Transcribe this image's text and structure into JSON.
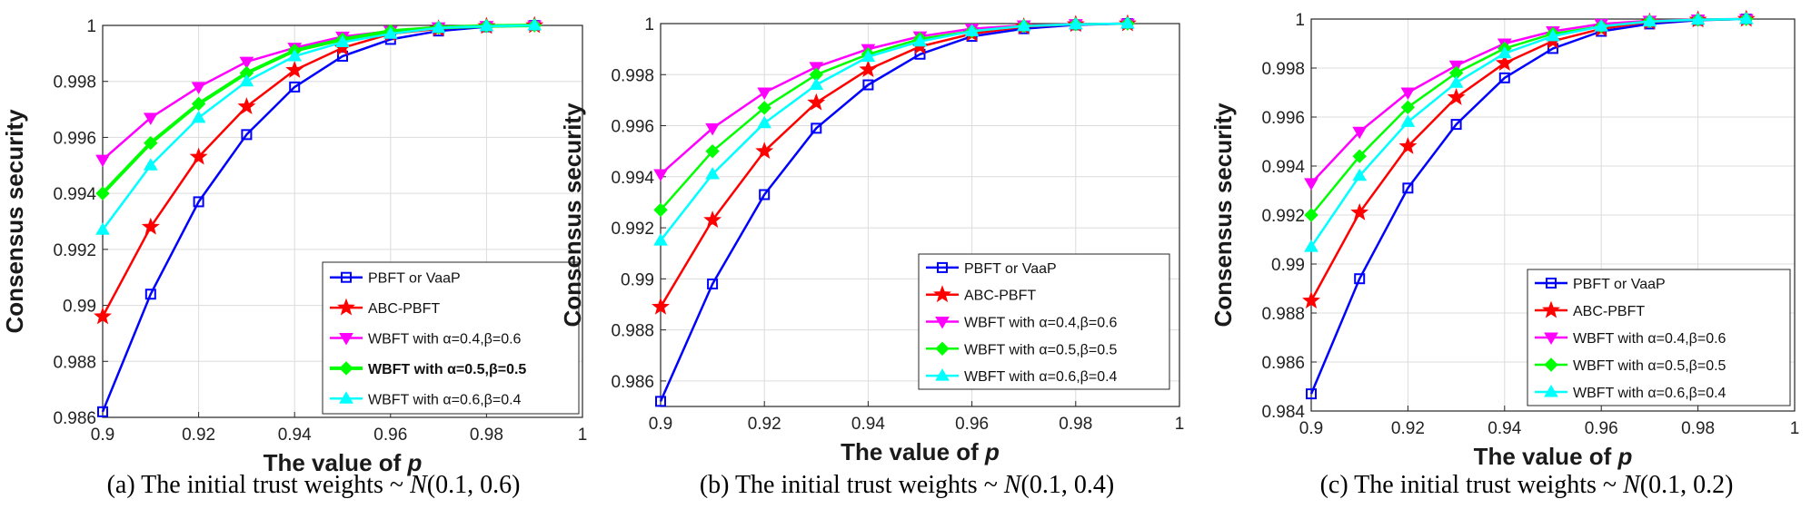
{
  "figure": {
    "captions": [
      {
        "prefix": "(a) The initial trust weights ~ ",
        "italic": "N",
        "suffix": "(0.1, 0.6)"
      },
      {
        "prefix": "(b) The initial trust weights ~ ",
        "italic": "N",
        "suffix": "(0.1, 0.4)"
      },
      {
        "prefix": "(c) The initial trust weights ~ ",
        "italic": "N",
        "suffix": "(0.1, 0.2)"
      }
    ]
  },
  "chart_data": [
    {
      "type": "line",
      "xlabel": "The value of",
      "xlabel_var": "p",
      "ylabel": "Consensus security",
      "xlim": [
        0.9,
        1
      ],
      "ylim": [
        0.986,
        1
      ],
      "xticks": [
        "0.9",
        "0.92",
        "0.94",
        "0.96",
        "0.98",
        "1"
      ],
      "yticks": [
        "0.986",
        "0.988",
        "0.99",
        "0.992",
        "0.994",
        "0.996",
        "0.998",
        "1"
      ],
      "grid": true,
      "legend_position": "bottom-right",
      "x": [
        0.9,
        0.91,
        0.92,
        0.93,
        0.94,
        0.95,
        0.96,
        0.97,
        0.98,
        0.99
      ],
      "series": [
        {
          "name": "PBFT or VaaP",
          "color": "#0000ff",
          "marker": "square",
          "values": [
            0.9862,
            0.9904,
            0.9937,
            0.9961,
            0.9978,
            0.9989,
            0.9995,
            0.9998,
            0.99995,
            1.0
          ]
        },
        {
          "name": "ABC-PBFT",
          "color": "#ff0000",
          "marker": "star",
          "values": [
            0.9896,
            0.9928,
            0.9953,
            0.9971,
            0.9984,
            0.9992,
            0.9997,
            0.99988,
            0.99997,
            1.0
          ]
        },
        {
          "name": "WBFT with α=0.4,β=0.6",
          "color": "#ff00ff",
          "marker": "triangle-down",
          "values": [
            0.9952,
            0.9967,
            0.9978,
            0.9987,
            0.9992,
            0.9996,
            0.9998,
            0.99993,
            0.99998,
            1.0
          ]
        },
        {
          "name": "WBFT with α=0.5,β=0.5",
          "color": "#00ff00",
          "marker": "diamond",
          "bold": true,
          "values": [
            0.994,
            0.9958,
            0.9972,
            0.9983,
            0.9991,
            0.9995,
            0.9998,
            0.99992,
            0.99998,
            1.0
          ]
        },
        {
          "name": "WBFT with α=0.6,β=0.4",
          "color": "#00ffff",
          "marker": "triangle-up",
          "values": [
            0.9927,
            0.995,
            0.9967,
            0.998,
            0.9989,
            0.9994,
            0.9997,
            0.99991,
            0.99997,
            1.0
          ]
        }
      ]
    },
    {
      "type": "line",
      "xlabel": "The value of",
      "xlabel_var": "p",
      "ylabel": "Consensus security",
      "xlim": [
        0.9,
        1
      ],
      "ylim": [
        0.985,
        1
      ],
      "xticks": [
        "0.9",
        "0.92",
        "0.94",
        "0.96",
        "0.98",
        "1"
      ],
      "yticks": [
        "0.986",
        "0.988",
        "0.99",
        "0.992",
        "0.994",
        "0.996",
        "0.998",
        "1"
      ],
      "grid": true,
      "legend_position": "bottom-right",
      "x": [
        0.9,
        0.91,
        0.92,
        0.93,
        0.94,
        0.95,
        0.96,
        0.97,
        0.98,
        0.99
      ],
      "series": [
        {
          "name": "PBFT or VaaP",
          "color": "#0000ff",
          "marker": "square",
          "values": [
            0.9852,
            0.9898,
            0.9933,
            0.9959,
            0.9976,
            0.9988,
            0.9995,
            0.9998,
            0.99995,
            1.0
          ]
        },
        {
          "name": "ABC-PBFT",
          "color": "#ff0000",
          "marker": "star",
          "values": [
            0.9889,
            0.9923,
            0.995,
            0.9969,
            0.9982,
            0.9991,
            0.9996,
            0.99988,
            0.99997,
            1.0
          ]
        },
        {
          "name": "WBFT with α=0.4,β=0.6",
          "color": "#ff00ff",
          "marker": "triangle-down",
          "values": [
            0.9941,
            0.9959,
            0.9973,
            0.9983,
            0.999,
            0.9995,
            0.9998,
            0.99993,
            0.99998,
            1.0
          ]
        },
        {
          "name": "WBFT with α=0.5,β=0.5",
          "color": "#00ff00",
          "marker": "diamond",
          "values": [
            0.9927,
            0.995,
            0.9967,
            0.998,
            0.9988,
            0.9994,
            0.9997,
            0.99991,
            0.99997,
            1.0
          ]
        },
        {
          "name": "WBFT with α=0.6,β=0.4",
          "color": "#00ffff",
          "marker": "triangle-up",
          "values": [
            0.9915,
            0.9941,
            0.9961,
            0.9976,
            0.9987,
            0.9993,
            0.9997,
            0.9999,
            0.99997,
            1.0
          ]
        }
      ]
    },
    {
      "type": "line",
      "xlabel": "The value of",
      "xlabel_var": "p",
      "ylabel": "Consensus security",
      "xlim": [
        0.9,
        1
      ],
      "ylim": [
        0.984,
        1
      ],
      "xticks": [
        "0.9",
        "0.92",
        "0.94",
        "0.96",
        "0.98",
        "1"
      ],
      "yticks": [
        "0.984",
        "0.986",
        "0.988",
        "0.99",
        "0.992",
        "0.994",
        "0.996",
        "0.998",
        "1"
      ],
      "grid": true,
      "legend_position": "bottom-right",
      "x": [
        0.9,
        0.91,
        0.92,
        0.93,
        0.94,
        0.95,
        0.96,
        0.97,
        0.98,
        0.99
      ],
      "series": [
        {
          "name": "PBFT or VaaP",
          "color": "#0000ff",
          "marker": "square",
          "values": [
            0.9847,
            0.9894,
            0.9931,
            0.9957,
            0.9976,
            0.9988,
            0.9995,
            0.9998,
            0.99995,
            1.0
          ]
        },
        {
          "name": "ABC-PBFT",
          "color": "#ff0000",
          "marker": "star",
          "values": [
            0.9885,
            0.9921,
            0.9948,
            0.9968,
            0.9982,
            0.9991,
            0.9996,
            0.99988,
            0.99997,
            1.0
          ]
        },
        {
          "name": "WBFT with α=0.4,β=0.6",
          "color": "#ff00ff",
          "marker": "triangle-down",
          "values": [
            0.9933,
            0.9954,
            0.997,
            0.9981,
            0.999,
            0.9995,
            0.9998,
            0.99993,
            0.99998,
            1.0
          ]
        },
        {
          "name": "WBFT with α=0.5,β=0.5",
          "color": "#00ff00",
          "marker": "diamond",
          "values": [
            0.992,
            0.9944,
            0.9964,
            0.9978,
            0.9988,
            0.9994,
            0.9997,
            0.99991,
            0.99997,
            1.0
          ]
        },
        {
          "name": "WBFT with α=0.6,β=0.4",
          "color": "#00ffff",
          "marker": "triangle-up",
          "values": [
            0.9907,
            0.9936,
            0.9958,
            0.9974,
            0.9986,
            0.9993,
            0.9997,
            0.9999,
            0.99997,
            1.0
          ]
        }
      ]
    }
  ]
}
